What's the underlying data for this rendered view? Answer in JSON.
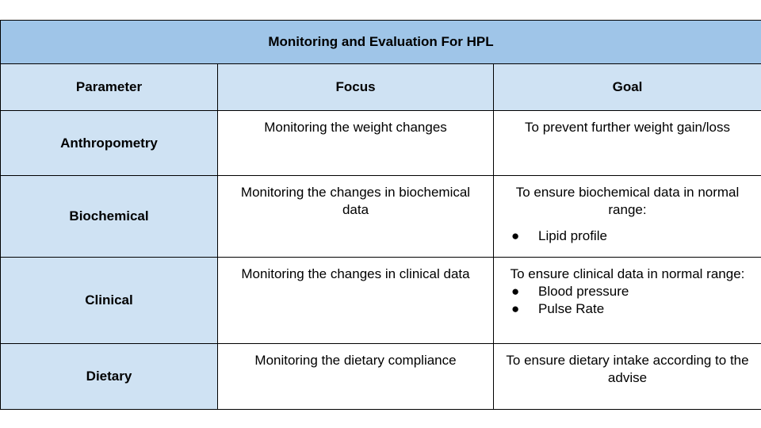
{
  "table": {
    "title": "Monitoring and Evaluation For HPL",
    "headers": {
      "parameter": "Parameter",
      "focus": "Focus",
      "goal": "Goal"
    },
    "rows": [
      {
        "parameter": "Anthropometry",
        "focus": "Monitoring the weight changes",
        "goal": "To prevent further weight gain/loss",
        "bullets": []
      },
      {
        "parameter": "Biochemical",
        "focus": "Monitoring the changes in biochemical data",
        "goal": "To ensure biochemical data in normal range:",
        "bullets": [
          "Lipid profile"
        ]
      },
      {
        "parameter": "Clinical",
        "focus": "Monitoring the changes in clinical data",
        "goal": "To ensure clinical data in normal range:",
        "bullets": [
          "Blood pressure",
          "Pulse Rate"
        ]
      },
      {
        "parameter": "Dietary",
        "focus": "Monitoring the dietary compliance",
        "goal": "To ensure dietary intake according to the advise",
        "bullets": []
      }
    ]
  },
  "bullet_glyph": "●"
}
